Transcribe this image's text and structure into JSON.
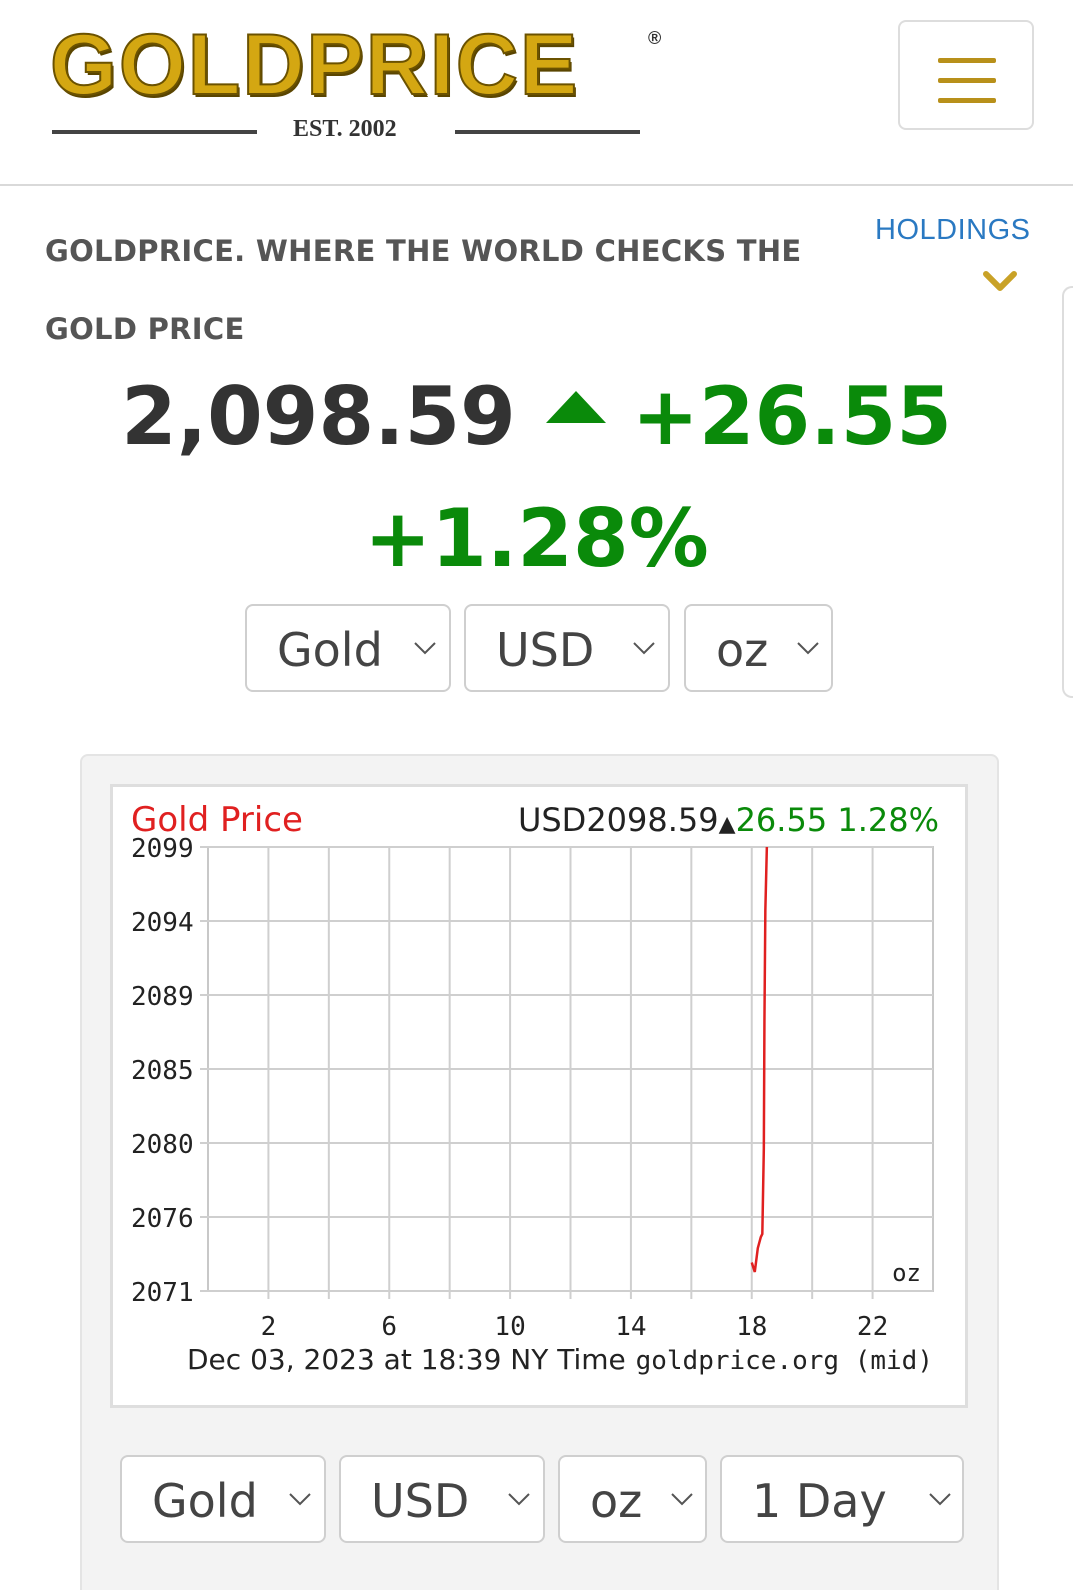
{
  "header": {
    "logo_text": "GOLDPRICE",
    "logo_reg": "®",
    "logo_est": "EST. 2002"
  },
  "tagline": "GOLDPRICE. WHERE THE WORLD CHECKS THE GOLD PRICE",
  "holdings_label": "HOLDINGS",
  "quote": {
    "price": "2,098.59",
    "change": "+26.55",
    "percent": "+1.28%"
  },
  "selectors_top": {
    "metal": "Gold",
    "currency": "USD",
    "unit": "oz"
  },
  "chart_data": {
    "type": "line",
    "title": "Gold Price",
    "quote_currency_price": "USD2098.59",
    "quote_change": "26.55",
    "quote_percent": "1.28%",
    "yticks": [
      "2099",
      "2094",
      "2089",
      "2085",
      "2080",
      "2076",
      "2071"
    ],
    "ylim": [
      2071,
      2099
    ],
    "xticks": [
      "2",
      "6",
      "10",
      "14",
      "18",
      "22"
    ],
    "xlim": [
      0,
      24
    ],
    "unit_label": "oz",
    "footer_left": "Dec 03, 2023 at 18:39 NY Time",
    "footer_right": "goldprice.org (mid)",
    "grid": true,
    "series": [
      {
        "x": [
          18.0,
          18.1,
          18.2,
          18.3,
          18.35,
          18.4,
          18.42,
          18.45,
          18.5
        ],
        "values": [
          2072.8,
          2072.2,
          2073.7,
          2074.4,
          2074.6,
          2080,
          2088,
          2095,
          2099
        ]
      }
    ]
  },
  "selectors_bottom": {
    "metal": "Gold",
    "currency": "USD",
    "unit": "oz",
    "range": "1 Day"
  },
  "colors": {
    "gold": "#b8901a",
    "up_green": "#0a8a0a",
    "link_blue": "#2a79c2",
    "chart_red": "#e02020"
  }
}
